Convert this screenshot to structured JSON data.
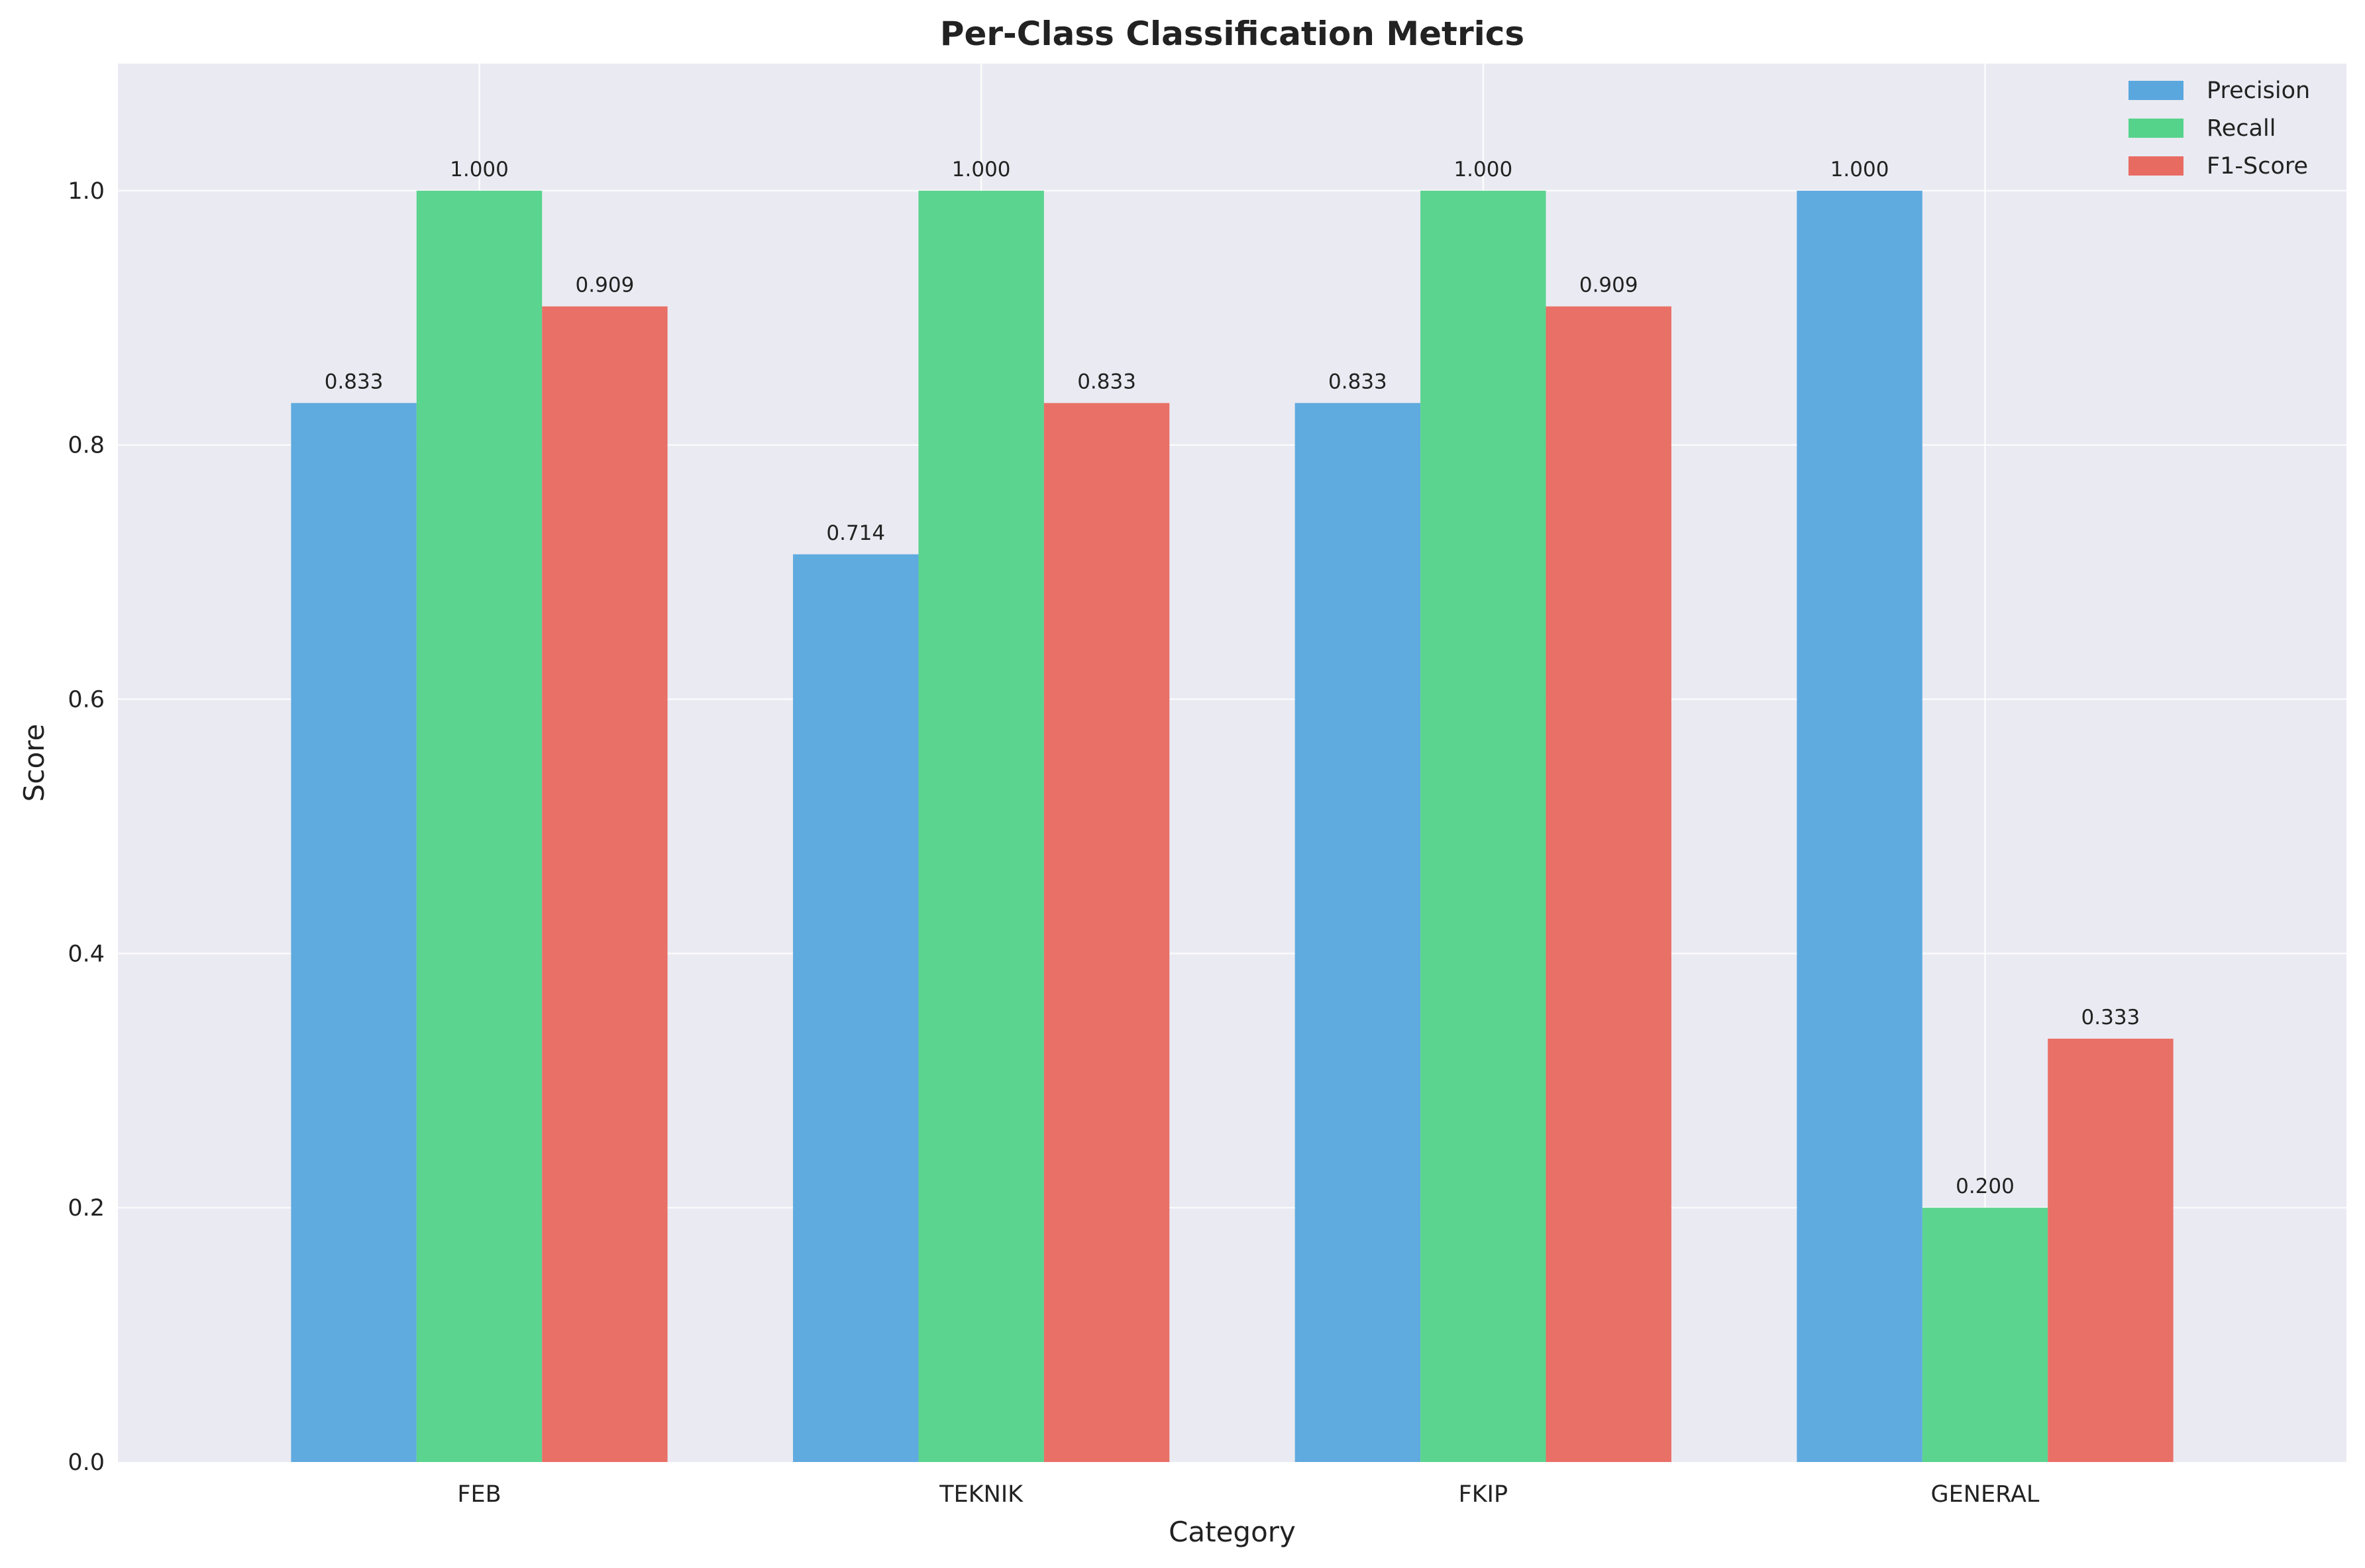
{
  "chart_data": {
    "type": "bar",
    "title": "Per-Class Classification Metrics",
    "xlabel": "Category",
    "ylabel": "Score",
    "categories": [
      "FEB",
      "TEKNIK",
      "FKIP",
      "GENERAL"
    ],
    "series": [
      {
        "name": "Precision",
        "values": [
          0.833,
          0.714,
          0.833,
          1.0
        ],
        "labels": [
          "0.833",
          "0.714",
          "0.833",
          "1.000"
        ],
        "color": "#5aa7de"
      },
      {
        "name": "Recall",
        "values": [
          1.0,
          1.0,
          1.0,
          0.2
        ],
        "labels": [
          "1.000",
          "1.000",
          "1.000",
          "0.200"
        ],
        "color": "#55d38b"
      },
      {
        "name": "F1-Score",
        "values": [
          0.909,
          0.833,
          0.909,
          0.333
        ],
        "labels": [
          "0.909",
          "0.833",
          "0.909",
          "0.333"
        ],
        "color": "#e86b62"
      }
    ],
    "ylim": [
      0,
      1.1
    ],
    "yticks": [
      "0.0",
      "0.2",
      "0.4",
      "0.6",
      "0.8",
      "1.0"
    ],
    "grid": true,
    "legend_position": "top-right",
    "background": "#eaeaf2"
  }
}
